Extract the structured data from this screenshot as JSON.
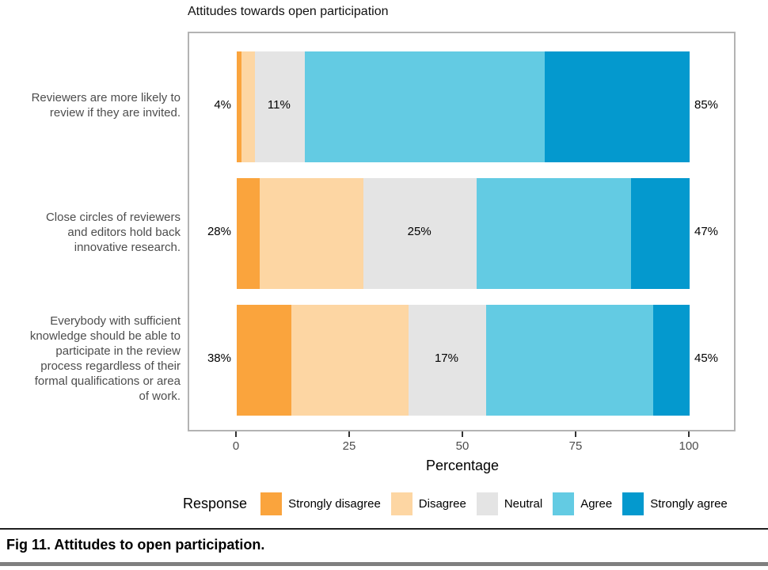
{
  "title": "Attitudes towards open participation",
  "axis": {
    "label": "Percentage",
    "ticks": [
      "0",
      "25",
      "50",
      "75",
      "100"
    ],
    "tick_values": [
      0,
      25,
      50,
      75,
      100
    ]
  },
  "legend": {
    "title": "Response",
    "entries": [
      {
        "label": "Strongly disagree",
        "color": "#FAA43D"
      },
      {
        "label": "Disagree",
        "color": "#FDD6A3"
      },
      {
        "label": "Neutral",
        "color": "#E4E4E4"
      },
      {
        "label": "Agree",
        "color": "#63CBE3"
      },
      {
        "label": "Strongly agree",
        "color": "#0499CE"
      }
    ]
  },
  "caption": {
    "text": "Fig 11. Attitudes to open participation."
  },
  "chart_data": {
    "type": "bar",
    "orientation": "horizontal_stacked",
    "title": "Attitudes towards open participation",
    "xlabel": "Percentage",
    "xlim": [
      0,
      100
    ],
    "xticks": [
      0,
      25,
      50,
      75,
      100
    ],
    "grid": false,
    "legend_position": "bottom",
    "legend_title": "Response",
    "series_order": [
      "Strongly disagree",
      "Disagree",
      "Neutral",
      "Agree",
      "Strongly agree"
    ],
    "categories": [
      "Reviewers are more likely to review if they are invited.",
      "Close circles of reviewers and editors hold back innovative research.",
      "Everybody with sufficient knowledge should be able to participate in the review process regardless of their formal qualifications or area of work."
    ],
    "rows": [
      {
        "statement_lines": [
          "Reviewers are more likely to",
          "review if they are invited."
        ],
        "values": {
          "Strongly disagree": 1,
          "Disagree": 3,
          "Neutral": 11,
          "Agree": 53,
          "Strongly agree": 32
        },
        "labels": {
          "left": "4%",
          "middle": "11%",
          "right": "85%"
        }
      },
      {
        "statement_lines": [
          "Close circles of reviewers",
          "and editors hold back",
          "innovative research."
        ],
        "values": {
          "Strongly disagree": 5,
          "Disagree": 23,
          "Neutral": 25,
          "Agree": 34,
          "Strongly agree": 13
        },
        "labels": {
          "left": "28%",
          "middle": "25%",
          "right": "47%"
        }
      },
      {
        "statement_lines": [
          "Everybody with sufficient",
          "knowledge should be able to",
          "participate in the review",
          "process regardless of their",
          "formal qualifications or area",
          "of work."
        ],
        "values": {
          "Strongly disagree": 12,
          "Disagree": 26,
          "Neutral": 17,
          "Agree": 37,
          "Strongly agree": 8
        },
        "labels": {
          "left": "38%",
          "middle": "17%",
          "right": "45%"
        }
      }
    ]
  }
}
